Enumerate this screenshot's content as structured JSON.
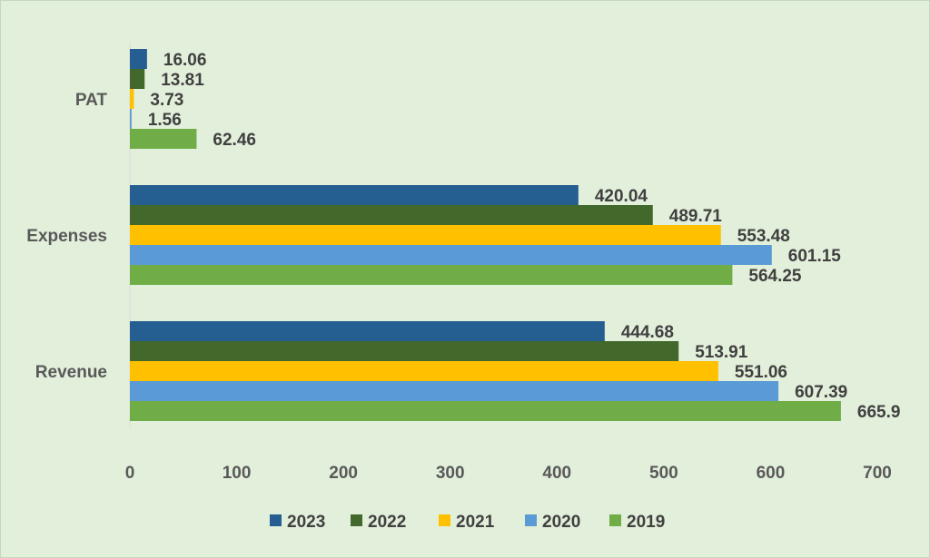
{
  "chart_data": {
    "type": "bar",
    "orientation": "horizontal",
    "categories": [
      "Revenue",
      "Expenses",
      "PAT"
    ],
    "series": [
      {
        "name": "2023",
        "color": "#255e91",
        "values": [
          444.68,
          420.04,
          16.06
        ]
      },
      {
        "name": "2022",
        "color": "#43682b",
        "values": [
          513.91,
          489.71,
          13.81
        ]
      },
      {
        "name": "2021",
        "color": "#ffc000",
        "values": [
          551.06,
          553.48,
          3.73
        ]
      },
      {
        "name": "2020",
        "color": "#5b9bd5",
        "values": [
          607.39,
          601.15,
          1.56
        ]
      },
      {
        "name": "2019",
        "color": "#70ad47",
        "values": [
          665.9,
          564.25,
          62.46
        ]
      }
    ],
    "value_labels": [
      [
        "444.68",
        "420.04",
        "16.06"
      ],
      [
        "513.91",
        "489.71",
        "13.81"
      ],
      [
        "551.06",
        "553.48",
        "3.73"
      ],
      [
        "607.39",
        "601.15",
        "1.56"
      ],
      [
        "665.9",
        "564.25",
        "62.46"
      ]
    ],
    "xlim": [
      0,
      700
    ],
    "x_ticks": [
      0,
      100,
      200,
      300,
      400,
      500,
      600,
      700
    ],
    "grid": false,
    "legend_position": "bottom",
    "background": "#e2efda"
  }
}
